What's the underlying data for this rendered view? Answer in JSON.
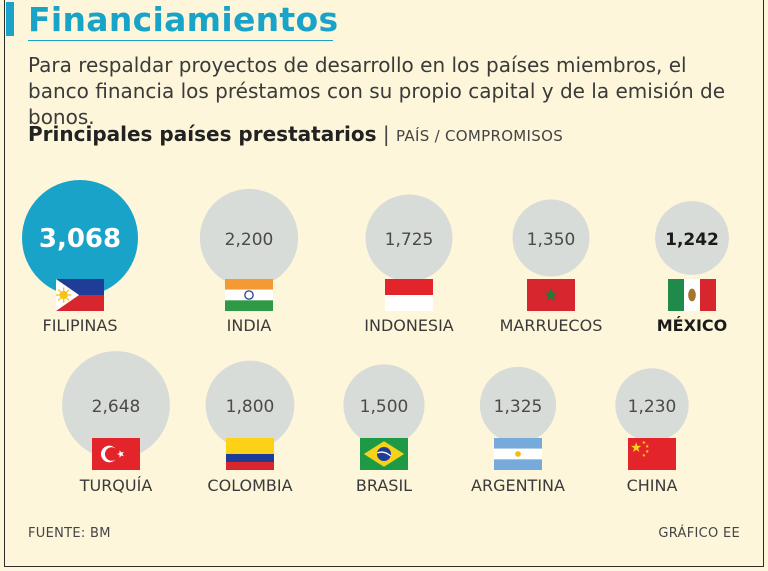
{
  "header": {
    "title": "Financiamientos",
    "intro": "Para respaldar proyectos de desarrollo en los países miembros, el banco financia los préstamos con su propio capital y de la emisión de bonos.",
    "subtitle_main": "Principales países prestatarios",
    "subtitle_sep": "|",
    "subtitle_unit": "PAÍS / COMPROMISOS"
  },
  "chart_data": {
    "type": "bubble",
    "title": "Principales países prestatarios",
    "series": [
      {
        "values": [
          3068,
          2200,
          1725,
          1350,
          1242,
          2648,
          1800,
          1500,
          1325,
          1230
        ]
      }
    ],
    "points": [
      {
        "country": "FILIPINAS",
        "value": 3068,
        "label": "3,068",
        "flag": "philippines",
        "highlight": "top"
      },
      {
        "country": "INDIA",
        "value": 2200,
        "label": "2,200",
        "flag": "india"
      },
      {
        "country": "INDONESIA",
        "value": 1725,
        "label": "1,725",
        "flag": "indonesia"
      },
      {
        "country": "MARRUECOS",
        "value": 1350,
        "label": "1,350",
        "flag": "morocco"
      },
      {
        "country": "MÉXICO",
        "value": 1242,
        "label": "1,242",
        "flag": "mexico",
        "highlight": "bold"
      },
      {
        "country": "TURQUÍA",
        "value": 2648,
        "label": "2,648",
        "flag": "turkey"
      },
      {
        "country": "COLOMBIA",
        "value": 1800,
        "label": "1,800",
        "flag": "colombia"
      },
      {
        "country": "BRASIL",
        "value": 1500,
        "label": "1,500",
        "flag": "brazil"
      },
      {
        "country": "ARGENTINA",
        "value": 1325,
        "label": "1,325",
        "flag": "argentina"
      },
      {
        "country": "CHINA",
        "value": 1230,
        "label": "1,230",
        "flag": "china"
      }
    ],
    "colors": {
      "bubble": "#d8dcd8",
      "highlight": "#1aa3c9",
      "accent": "#1aa3c9"
    }
  },
  "footer": {
    "source": "FUENTE:  BM",
    "credit": "GRÁFICO EE"
  }
}
